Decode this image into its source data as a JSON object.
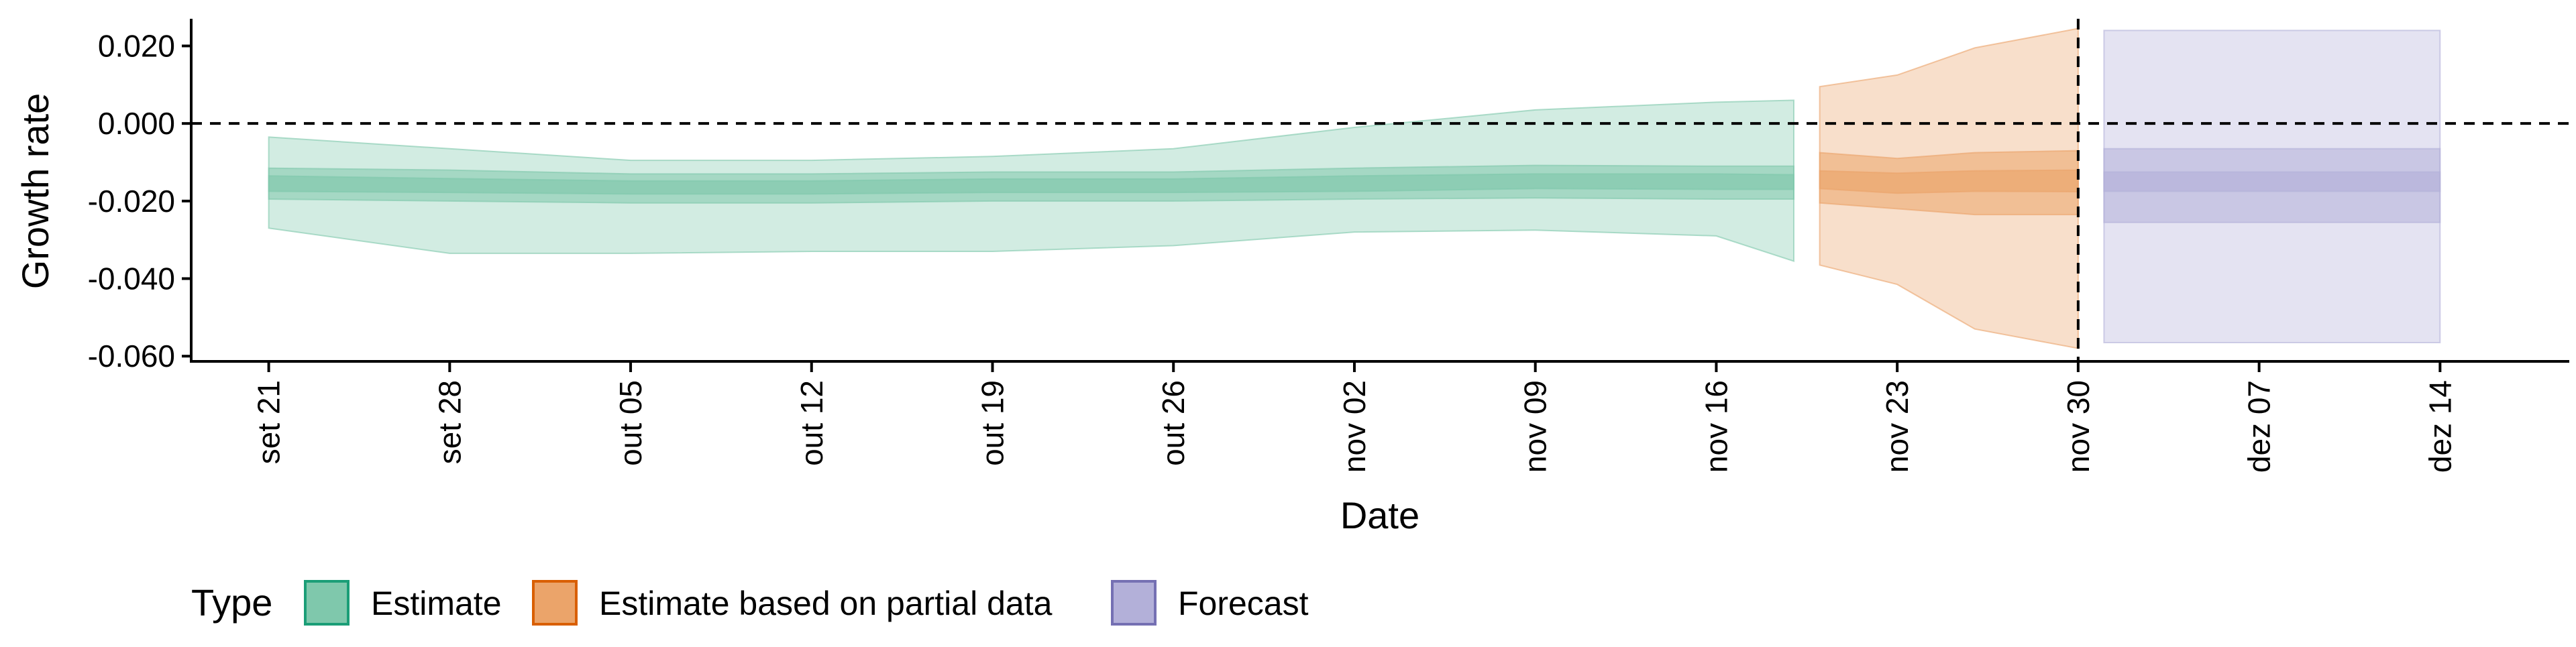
{
  "chart_data": {
    "type": "area",
    "xlabel": "Date",
    "ylabel": "Growth rate",
    "ylim": [
      -0.061,
      0.027
    ],
    "xlim": [
      "2020-09-18",
      "2020-12-19"
    ],
    "y_ticks": [
      "0.020",
      "0.000",
      "-0.020",
      "-0.040",
      "-0.060"
    ],
    "y_tick_values": [
      0.02,
      0.0,
      -0.02,
      -0.04,
      -0.06
    ],
    "x_tick_labels": [
      "set 21",
      "set 28",
      "out 05",
      "out 12",
      "out 19",
      "out 26",
      "nov 02",
      "nov 09",
      "nov 16",
      "nov 23",
      "nov 30",
      "dez 07",
      "dez 14"
    ],
    "x_tick_dates": [
      "2020-09-21",
      "2020-09-28",
      "2020-10-05",
      "2020-10-12",
      "2020-10-19",
      "2020-10-26",
      "2020-11-02",
      "2020-11-09",
      "2020-11-16",
      "2020-11-23",
      "2020-11-30",
      "2020-12-07",
      "2020-12-14"
    ],
    "reference_lines": {
      "horizontal_y": 0.0,
      "vertical_date": "2020-11-30",
      "style": "dashed"
    },
    "grid": false,
    "legend": {
      "title": "Type",
      "position": "bottom-left",
      "entries": [
        "Estimate",
        "Estimate based on partial data",
        "Forecast"
      ]
    },
    "series": [
      {
        "name": "Estimate",
        "color": "#1b9e77",
        "fill": "#7fc8ac",
        "x": [
          "2020-09-21",
          "2020-09-28",
          "2020-10-05",
          "2020-10-12",
          "2020-10-19",
          "2020-10-26",
          "2020-11-02",
          "2020-11-09",
          "2020-11-16",
          "2020-11-19"
        ],
        "median": [
          -0.0155,
          -0.016,
          -0.0165,
          -0.0165,
          -0.016,
          -0.016,
          -0.0155,
          -0.015,
          -0.015,
          -0.015
        ],
        "lower_30": [
          -0.0135,
          -0.0142,
          -0.0148,
          -0.0148,
          -0.0143,
          -0.0143,
          -0.0135,
          -0.013,
          -0.013,
          -0.0132
        ],
        "upper_30": [
          -0.0175,
          -0.0178,
          -0.0182,
          -0.0182,
          -0.0178,
          -0.0178,
          -0.0175,
          -0.0168,
          -0.017,
          -0.017
        ],
        "lower_60": [
          -0.0115,
          -0.012,
          -0.013,
          -0.013,
          -0.0125,
          -0.0125,
          -0.0115,
          -0.0108,
          -0.011,
          -0.011
        ],
        "upper_60": [
          -0.0195,
          -0.02,
          -0.0205,
          -0.0205,
          -0.02,
          -0.02,
          -0.0195,
          -0.0192,
          -0.0195,
          -0.0195
        ],
        "lower_90": [
          -0.0035,
          -0.0065,
          -0.0095,
          -0.0095,
          -0.0085,
          -0.0065,
          -0.001,
          0.0035,
          0.0055,
          0.006
        ],
        "upper_90": [
          -0.027,
          -0.0335,
          -0.0335,
          -0.033,
          -0.033,
          -0.0315,
          -0.028,
          -0.0275,
          -0.029,
          -0.0355
        ]
      },
      {
        "name": "Estimate based on partial data",
        "color": "#d95f02",
        "fill": "#eba46a",
        "x": [
          "2020-11-20",
          "2020-11-23",
          "2020-11-26",
          "2020-11-30"
        ],
        "median": [
          -0.0148,
          -0.0152,
          -0.0148,
          -0.0148
        ],
        "lower_30": [
          -0.0122,
          -0.0128,
          -0.0122,
          -0.012
        ],
        "upper_30": [
          -0.0168,
          -0.018,
          -0.0175,
          -0.0176
        ],
        "lower_60": [
          -0.0075,
          -0.009,
          -0.0075,
          -0.007
        ],
        "upper_60": [
          -0.0205,
          -0.022,
          -0.0235,
          -0.0235
        ],
        "lower_90": [
          0.0095,
          0.0125,
          0.0195,
          0.0245
        ],
        "upper_90": [
          -0.0365,
          -0.0415,
          -0.053,
          -0.058
        ]
      },
      {
        "name": "Forecast",
        "color": "#7570b3",
        "fill": "#b3b0d9",
        "x": [
          "2020-12-01",
          "2020-12-14"
        ],
        "median": [
          -0.015,
          -0.015
        ],
        "lower_30": [
          -0.0125,
          -0.0125
        ],
        "upper_30": [
          -0.0175,
          -0.0175
        ],
        "lower_60": [
          -0.0065,
          -0.0065
        ],
        "upper_60": [
          -0.0255,
          -0.0255
        ],
        "lower_90": [
          0.024,
          0.024
        ],
        "upper_90": [
          -0.0565,
          -0.0565
        ]
      }
    ]
  }
}
